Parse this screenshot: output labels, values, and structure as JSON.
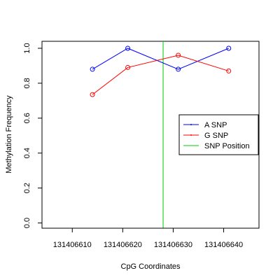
{
  "chart_data": {
    "type": "line",
    "title": "",
    "xlabel": "CpG Coordinates",
    "ylabel": "Methylation Frequency",
    "xlim": [
      131406604,
      131406647
    ],
    "ylim": [
      -0.03,
      1.04
    ],
    "xticks": [
      131406610,
      131406620,
      131406630,
      131406640
    ],
    "xtick_labels": [
      "131406610",
      "131406620",
      "131406630",
      "131406640"
    ],
    "yticks": [
      0.0,
      0.2,
      0.4,
      0.6,
      0.8,
      1.0
    ],
    "ytick_labels": [
      "0.0",
      "0.2",
      "0.4",
      "0.6",
      "0.8",
      "1.0"
    ],
    "grid": false,
    "legend_position": "right",
    "series": [
      {
        "name": "A SNP",
        "color": "#0000ff",
        "x": [
          131406614,
          131406621,
          131406631,
          131406641
        ],
        "y": [
          0.88,
          1.0,
          0.88,
          1.0
        ]
      },
      {
        "name": "G SNP",
        "color": "#ff0000",
        "x": [
          131406614,
          131406621,
          131406631,
          131406641
        ],
        "y": [
          0.735,
          0.89,
          0.96,
          0.87
        ]
      }
    ],
    "vlines": [
      {
        "name": "SNP Position",
        "color": "#00cc00",
        "x": 131406628
      }
    ]
  }
}
